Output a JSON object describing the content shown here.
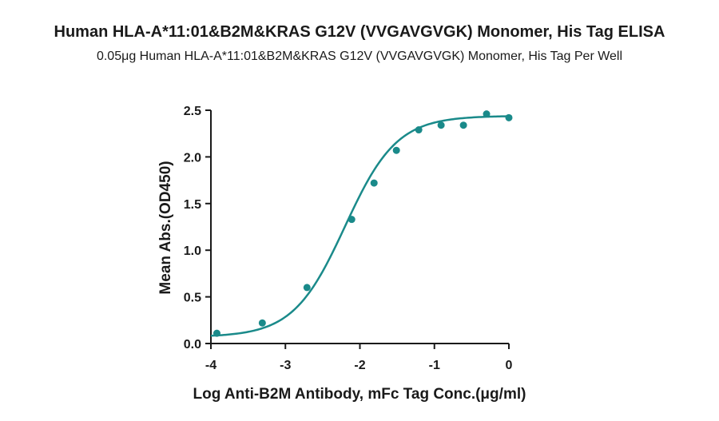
{
  "chart_data": {
    "type": "scatter",
    "title": "Human HLA-A*11:01&B2M&KRAS G12V (VVGAVGVGK) Monomer, His Tag ELISA",
    "subtitle": "0.05μg Human HLA-A*11:01&B2M&KRAS G12V (VVGAVGVGK) Monomer, His Tag Per Well",
    "xlabel": "Log Anti-B2M Antibody, mFc Tag Conc.(μg/ml)",
    "ylabel": "Mean Abs.(OD450)",
    "xlim": [
      -4,
      0
    ],
    "ylim": [
      0,
      2.5
    ],
    "x_ticks": [
      -4,
      -3,
      -2,
      -1,
      0
    ],
    "x_tick_labels": [
      "-4",
      "-3",
      "-2",
      "-1",
      "0"
    ],
    "y_ticks": [
      0,
      0.5,
      1.0,
      1.5,
      2.0,
      2.5
    ],
    "y_tick_labels": [
      "0.0",
      "0.5",
      "1.0",
      "1.5",
      "2.0",
      "2.5"
    ],
    "grid": false,
    "color": "#1a8a8a",
    "series": [
      {
        "x": [
          -3.92,
          -3.31,
          -2.71,
          -2.11,
          -1.81,
          -1.51,
          -1.21,
          -0.91,
          -0.61,
          -0.3,
          0.0
        ],
        "y": [
          0.11,
          0.22,
          0.6,
          1.33,
          1.72,
          2.07,
          2.29,
          2.34,
          2.34,
          2.46,
          2.42
        ]
      }
    ],
    "fit_curve": {
      "model": "4PL",
      "bottom": 0.07,
      "top": 2.44,
      "logEC50": -2.2,
      "hill": 1.25
    }
  }
}
